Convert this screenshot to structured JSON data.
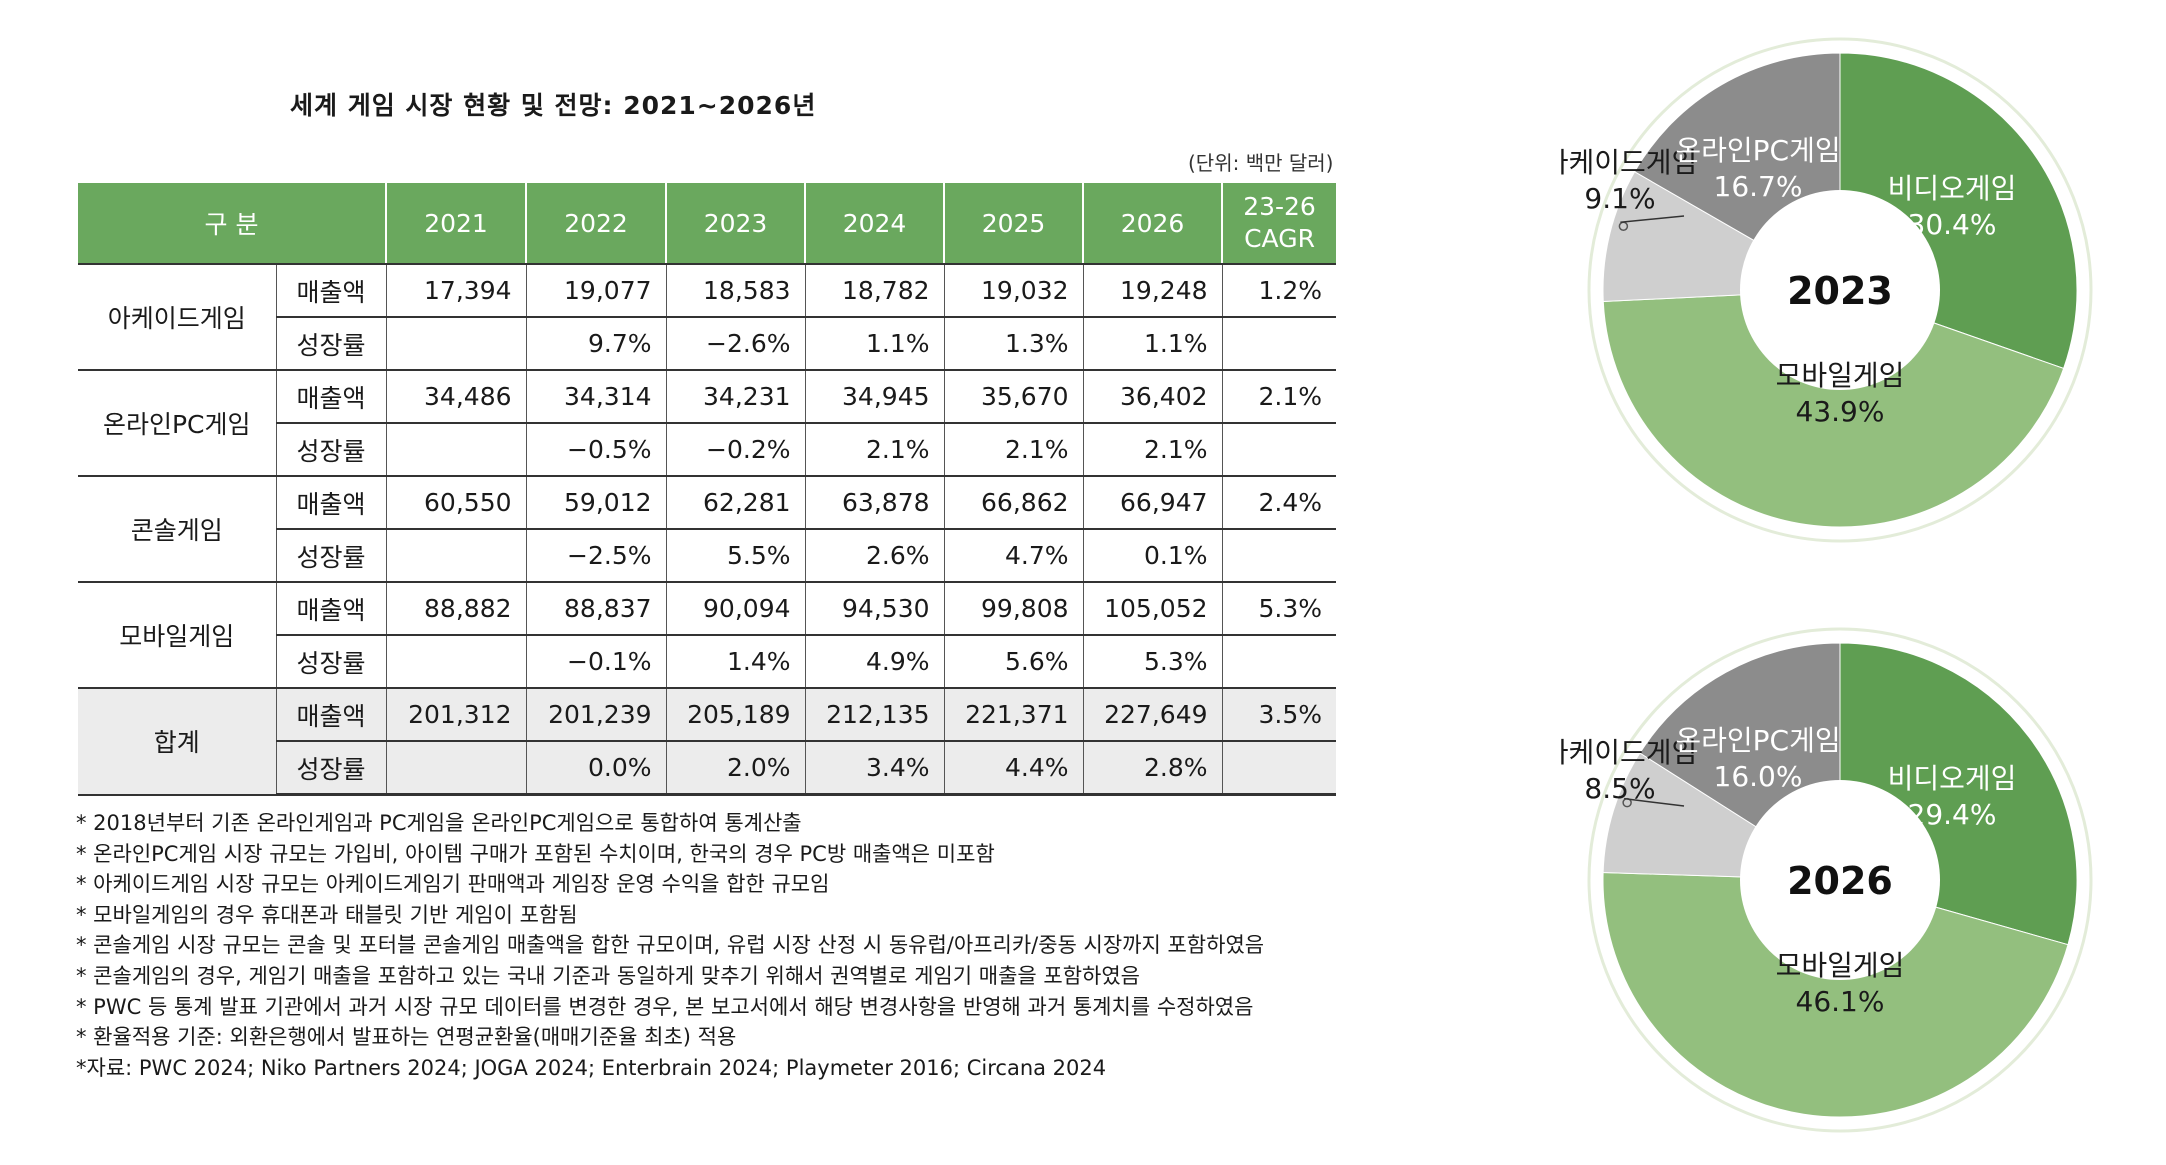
{
  "title": "세계 게임 시장 현황 및 전망: 2021~2026년",
  "unit": "(단위: 백만 달러)",
  "table": {
    "headers": [
      "구 분",
      "2021",
      "2022",
      "2023",
      "2024",
      "2025",
      "2026",
      "23-26",
      "CAGR"
    ],
    "rows": [
      {
        "category": "아케이드게임",
        "revenue": {
          "label": "매출액",
          "values": [
            "17,394",
            "19,077",
            "18,583",
            "18,782",
            "19,032",
            "19,248",
            "1.2%"
          ]
        },
        "growth": {
          "label": "성장률",
          "values": [
            "",
            "9.7%",
            "−2.6%",
            "1.1%",
            "1.3%",
            "1.1%",
            ""
          ]
        }
      },
      {
        "category": "온라인PC게임",
        "revenue": {
          "label": "매출액",
          "values": [
            "34,486",
            "34,314",
            "34,231",
            "34,945",
            "35,670",
            "36,402",
            "2.1%"
          ]
        },
        "growth": {
          "label": "성장률",
          "values": [
            "",
            "−0.5%",
            "−0.2%",
            "2.1%",
            "2.1%",
            "2.1%",
            ""
          ]
        }
      },
      {
        "category": "콘솔게임",
        "revenue": {
          "label": "매출액",
          "values": [
            "60,550",
            "59,012",
            "62,281",
            "63,878",
            "66,862",
            "66,947",
            "2.4%"
          ]
        },
        "growth": {
          "label": "성장률",
          "values": [
            "",
            "−2.5%",
            "5.5%",
            "2.6%",
            "4.7%",
            "0.1%",
            ""
          ]
        }
      },
      {
        "category": "모바일게임",
        "revenue": {
          "label": "매출액",
          "values": [
            "88,882",
            "88,837",
            "90,094",
            "94,530",
            "99,808",
            "105,052",
            "5.3%"
          ]
        },
        "growth": {
          "label": "성장률",
          "values": [
            "",
            "−0.1%",
            "1.4%",
            "4.9%",
            "5.6%",
            "5.3%",
            ""
          ]
        }
      },
      {
        "category": "합계",
        "revenue": {
          "label": "매출액",
          "values": [
            "201,312",
            "201,239",
            "205,189",
            "212,135",
            "221,371",
            "227,649",
            "3.5%"
          ]
        },
        "growth": {
          "label": "성장률",
          "values": [
            "",
            "0.0%",
            "2.0%",
            "3.4%",
            "4.4%",
            "2.8%",
            ""
          ]
        }
      }
    ]
  },
  "notes": [
    "* 2018년부터 기존 온라인게임과 PC게임을 온라인PC게임으로 통합하여 통계산출",
    "* 온라인PC게임 시장 규모는 가입비, 아이템 구매가 포함된 수치이며, 한국의 경우 PC방 매출액은 미포함",
    "* 아케이드게임 시장 규모는 아케이드게임기 판매액과 게임장 운영 수익을 합한 규모임",
    "* 모바일게임의 경우 휴대폰과 태블릿 기반 게임이 포함됨",
    "* 콘솔게임 시장 규모는 콘솔 및 포터블 콘솔게임 매출액을 합한 규모이며, 유럽 시장 산정 시 동유럽/아프리카/중동 시장까지 포함하였음",
    "* 콘솔게임의 경우, 게임기 매출을 포함하고 있는 국내 기준과 동일하게 맞추기 위해서 권역별로 게임기 매출을 포함하였음",
    "* PWC 등 통계 발표 기관에서 과거 시장 규모 데이터를 변경한 경우, 본 보고서에서 해당 변경사항을 반영해 과거 통계치를 수정하였음",
    "* 환율적용 기준: 외환은행에서 발표하는 연평균환율(매매기준율 최초) 적용",
    "*자료: PWC 2024; Niko Partners 2024; JOGA 2024; Enterbrain 2024; Playmeter 2016; Circana 2024"
  ],
  "colors": {
    "header_green": "#6aa85e",
    "video": "#5f9e52",
    "mobile": "#93bf7e",
    "arcade": "#cfcfcf",
    "online": "#8c8c8c",
    "ring": "#e3ecd9"
  },
  "chart_data": [
    {
      "type": "pie",
      "title": "2023",
      "donut": true,
      "categories": [
        "비디오게임",
        "모바일게임",
        "아케이드게임",
        "온라인PC게임"
      ],
      "values": [
        30.4,
        43.9,
        9.1,
        16.7
      ],
      "labels": [
        "30.4%",
        "43.9%",
        "9.1%",
        "16.7%"
      ]
    },
    {
      "type": "pie",
      "title": "2026",
      "donut": true,
      "categories": [
        "비디오게임",
        "모바일게임",
        "아케이드게임",
        "온라인PC게임"
      ],
      "values": [
        29.4,
        46.1,
        8.5,
        16.0
      ],
      "labels": [
        "29.4%",
        "46.1%",
        "8.5%",
        "16.0%"
      ]
    }
  ]
}
